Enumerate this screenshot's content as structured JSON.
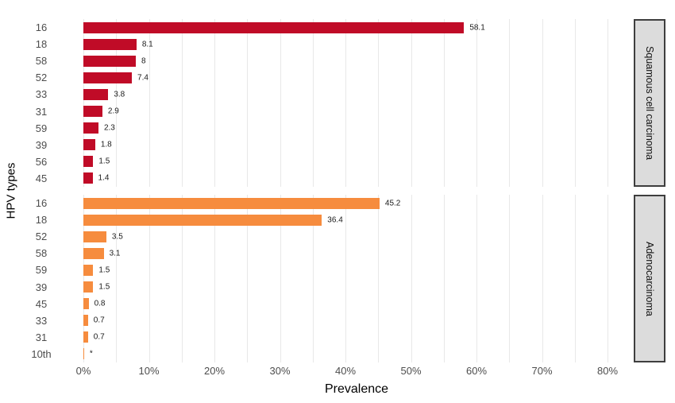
{
  "chart_data": {
    "type": "bar",
    "orientation": "horizontal",
    "title": "",
    "xlabel": "Prevalence",
    "ylabel": "HPV types",
    "x_ticks": [
      "0%",
      "10%",
      "20%",
      "30%",
      "40%",
      "50%",
      "60%",
      "70%",
      "80%"
    ],
    "xlim": [
      0,
      83
    ],
    "gridline_step_pct": 5,
    "grid": "on",
    "legend": "none",
    "panels": [
      {
        "label": "Squamous cell carcinoma",
        "bar_color": "#c00b27",
        "categories": [
          "16",
          "18",
          "58",
          "52",
          "33",
          "31",
          "59",
          "39",
          "56",
          "45"
        ],
        "values": [
          58.1,
          8.1,
          8,
          7.4,
          3.8,
          2.9,
          2.3,
          1.8,
          1.5,
          1.4
        ],
        "value_labels": [
          "58.1",
          "8.1",
          "8",
          "7.4",
          "3.8",
          "2.9",
          "2.3",
          "1.8",
          "1.5",
          "1.4"
        ]
      },
      {
        "label": "Adenocarcinoma",
        "bar_color": "#f68c3e",
        "categories": [
          "16",
          "18",
          "52",
          "58",
          "59",
          "39",
          "45",
          "33",
          "31",
          "10th"
        ],
        "values": [
          45.2,
          36.4,
          3.5,
          3.1,
          1.5,
          1.5,
          0.8,
          0.7,
          0.7,
          0.1
        ],
        "value_labels": [
          "45.2",
          "36.4",
          "3.5",
          "3.1",
          "1.5",
          "1.5",
          "0.8",
          "0.7",
          "0.7",
          "*"
        ]
      }
    ],
    "colors": {
      "gridline": "#e8e8e8",
      "strip_background": "#dcdcdc",
      "strip_border": "#3e3e3e",
      "tick_text": "#4d4d4d",
      "value_text": "#1a1a1a",
      "axis_title_text": "#000000"
    }
  }
}
